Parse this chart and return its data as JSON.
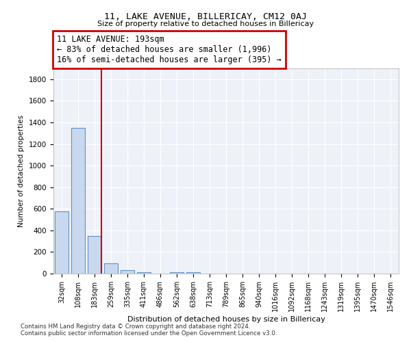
{
  "title": "11, LAKE AVENUE, BILLERICAY, CM12 0AJ",
  "subtitle": "Size of property relative to detached houses in Billericay",
  "xlabel": "Distribution of detached houses by size in Billericay",
  "ylabel": "Number of detached properties",
  "categories": [
    "32sqm",
    "108sqm",
    "183sqm",
    "259sqm",
    "335sqm",
    "411sqm",
    "486sqm",
    "562sqm",
    "638sqm",
    "713sqm",
    "789sqm",
    "865sqm",
    "940sqm",
    "1016sqm",
    "1092sqm",
    "1168sqm",
    "1243sqm",
    "1319sqm",
    "1395sqm",
    "1470sqm",
    "1546sqm"
  ],
  "values": [
    575,
    1350,
    350,
    95,
    30,
    10,
    0,
    12,
    10,
    0,
    0,
    0,
    0,
    0,
    0,
    0,
    0,
    0,
    0,
    0,
    0
  ],
  "bar_color": "#c8d8ee",
  "bar_edge_color": "#6090c8",
  "vline_color": "#cc0000",
  "vline_x_index": 2.42,
  "annotation_text": "11 LAKE AVENUE: 193sqm\n← 83% of detached houses are smaller (1,996)\n16% of semi-detached houses are larger (395) →",
  "annotation_box_color": "#ffffff",
  "annotation_box_edge": "#cc0000",
  "ylim": [
    0,
    1900
  ],
  "yticks": [
    0,
    200,
    400,
    600,
    800,
    1000,
    1200,
    1400,
    1600,
    1800
  ],
  "footer_line1": "Contains HM Land Registry data © Crown copyright and database right 2024.",
  "footer_line2": "Contains public sector information licensed under the Open Government Licence v3.0.",
  "bg_color": "#ffffff",
  "plot_bg_color": "#eef2f8",
  "grid_color": "#ffffff"
}
